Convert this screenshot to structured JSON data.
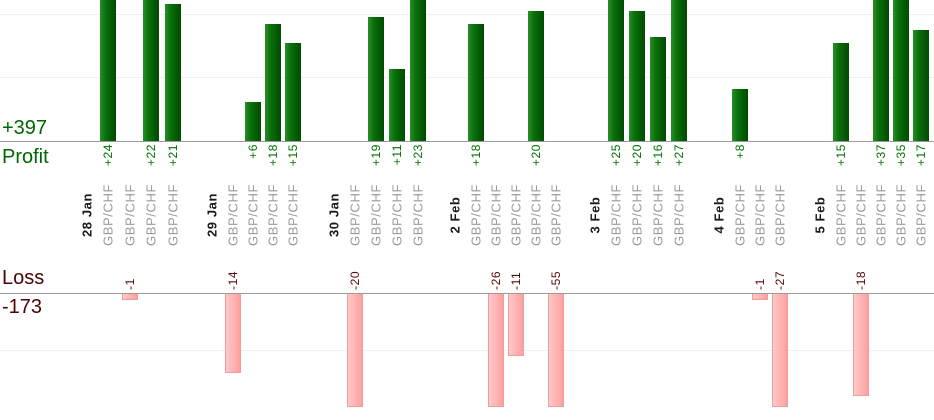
{
  "chart_data": {
    "type": "bar",
    "symbol": "GBP/CHF",
    "profit_axis": {
      "total": "+397",
      "label": "Profit"
    },
    "loss_axis": {
      "label": "Loss",
      "total": "-173"
    },
    "groups": [
      {
        "date": "28 Jan",
        "trades": [
          24,
          -1,
          22,
          21
        ]
      },
      {
        "date": "29 Jan",
        "trades": [
          -14,
          6,
          18,
          15
        ]
      },
      {
        "date": "30 Jan",
        "trades": [
          -20,
          19,
          11,
          23
        ]
      },
      {
        "date": "2 Feb",
        "trades": [
          18,
          -26,
          -11,
          20,
          -55
        ]
      },
      {
        "date": "3 Feb",
        "trades": [
          25,
          20,
          16,
          27
        ]
      },
      {
        "date": "4 Feb",
        "trades": [
          8,
          -1,
          -27
        ]
      },
      {
        "date": "5 Feb",
        "trades": [
          15,
          -18,
          37,
          35,
          17
        ]
      }
    ],
    "profit_values_labels": [
      "+24",
      "+22",
      "+21",
      "+6",
      "+18",
      "+15",
      "+19",
      "+11",
      "+23",
      "+18",
      "+20",
      "+25",
      "+20",
      "+16",
      "+27",
      "+8",
      "+15",
      "+37",
      "+35",
      "+17"
    ],
    "loss_values_labels": [
      "-1",
      "-14",
      "-20",
      "-26",
      "-11",
      "-55",
      "-1",
      "-27",
      "-18"
    ],
    "ylim_profit": [
      0,
      22
    ],
    "ylim_loss": [
      -20,
      0
    ],
    "grid": true,
    "legend": "none"
  },
  "colors": {
    "profit_bar_light": "#2a8f2a",
    "profit_bar_dark": "#004a00",
    "profit_text": "#006600",
    "loss_bar_light": "#ffc9c9",
    "loss_bar_dark": "#ff9f9f",
    "loss_bar_border": "#ee9c9c",
    "loss_text": "#4a0404",
    "symbol_text": "#9a9a9a",
    "date_text": "#1a1a1a",
    "axis_line": "#9a9a9a",
    "gridline": "#f0f0f0"
  }
}
